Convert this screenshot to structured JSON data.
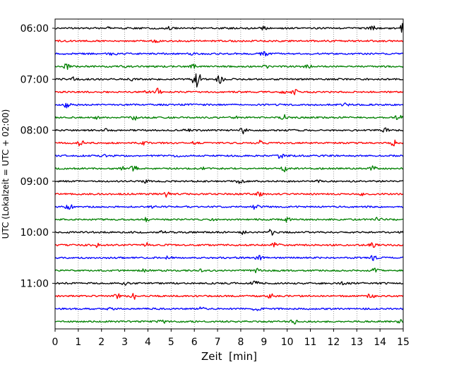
{
  "chart_data": {
    "type": "line",
    "title": "",
    "xlabel": "Zeit  [min]",
    "ylabel": "UTC (Lokalzeit = UTC + 02:00)",
    "xlim": [
      0,
      15
    ],
    "x_ticks": [
      0,
      1,
      2,
      3,
      4,
      5,
      6,
      7,
      8,
      9,
      10,
      11,
      12,
      13,
      14,
      15
    ],
    "x_tick_labels": [
      "0",
      "1",
      "2",
      "3",
      "4",
      "5",
      "6",
      "7",
      "8",
      "9",
      "10",
      "11",
      "12",
      "13",
      "14",
      "15"
    ],
    "y_tick_labels": [
      "06:00",
      "07:00",
      "08:00",
      "09:00",
      "10:00",
      "11:00"
    ],
    "grid": "vertical dotted",
    "trace_interval_min": 15,
    "color_cycle": [
      "#000000",
      "#ff0000",
      "#0000ff",
      "#008000"
    ],
    "series": [
      {
        "start": "06:00",
        "color": "#000000",
        "events": [
          [
            15.0,
            1.0
          ],
          [
            13.7,
            0.35
          ],
          [
            9.0,
            0.25
          ],
          [
            4.9,
            0.2
          ],
          [
            2.3,
            0.2
          ]
        ]
      },
      {
        "start": "06:15",
        "color": "#ff0000",
        "events": [
          [
            4.3,
            0.25
          ]
        ]
      },
      {
        "start": "06:30",
        "color": "#0000ff",
        "events": [
          [
            9.0,
            0.45
          ],
          [
            5.9,
            0.2
          ],
          [
            2.5,
            0.2
          ]
        ]
      },
      {
        "start": "06:45",
        "color": "#008000",
        "events": [
          [
            0.5,
            0.5
          ],
          [
            5.9,
            0.5
          ],
          [
            10.9,
            0.4
          ],
          [
            9.1,
            0.2
          ],
          [
            3.0,
            0.25
          ]
        ]
      },
      {
        "start": "07:00",
        "color": "#000000",
        "events": [
          [
            6.1,
            2.2
          ],
          [
            7.1,
            0.8
          ],
          [
            0.8,
            0.3
          ],
          [
            3.3,
            0.2
          ]
        ]
      },
      {
        "start": "07:15",
        "color": "#ff0000",
        "events": [
          [
            4.4,
            0.6
          ],
          [
            10.3,
            0.5
          ],
          [
            3.9,
            0.3
          ],
          [
            9.8,
            0.2
          ]
        ]
      },
      {
        "start": "07:30",
        "color": "#0000ff",
        "events": [
          [
            0.5,
            0.5
          ],
          [
            5.8,
            0.2
          ],
          [
            12.5,
            0.2
          ]
        ]
      },
      {
        "start": "07:45",
        "color": "#008000",
        "events": [
          [
            3.4,
            0.45
          ],
          [
            9.9,
            0.45
          ],
          [
            14.8,
            0.4
          ],
          [
            1.8,
            0.2
          ],
          [
            7.8,
            0.2
          ]
        ]
      },
      {
        "start": "08:00",
        "color": "#000000",
        "events": [
          [
            8.1,
            0.65
          ],
          [
            14.2,
            0.35
          ],
          [
            5.7,
            0.2
          ],
          [
            2.2,
            0.2
          ]
        ]
      },
      {
        "start": "08:15",
        "color": "#ff0000",
        "events": [
          [
            1.1,
            0.5
          ],
          [
            14.6,
            0.55
          ],
          [
            8.8,
            0.4
          ],
          [
            3.8,
            0.3
          ],
          [
            6.0,
            0.2
          ]
        ]
      },
      {
        "start": "08:30",
        "color": "#0000ff",
        "events": [
          [
            9.7,
            0.5
          ],
          [
            5.3,
            0.3
          ],
          [
            2.1,
            0.2
          ]
        ]
      },
      {
        "start": "08:45",
        "color": "#008000",
        "events": [
          [
            3.4,
            0.5
          ],
          [
            9.9,
            0.45
          ],
          [
            13.7,
            0.4
          ],
          [
            2.9,
            0.3
          ],
          [
            6.4,
            0.2
          ]
        ]
      },
      {
        "start": "09:00",
        "color": "#000000",
        "events": [
          [
            8.0,
            0.6
          ],
          [
            3.9,
            0.2
          ],
          [
            11.4,
            0.2
          ]
        ]
      },
      {
        "start": "09:15",
        "color": "#ff0000",
        "events": [
          [
            4.8,
            0.45
          ],
          [
            8.8,
            0.4
          ],
          [
            13.2,
            0.2
          ]
        ]
      },
      {
        "start": "09:30",
        "color": "#0000ff",
        "events": [
          [
            0.6,
            0.5
          ],
          [
            8.6,
            0.45
          ],
          [
            4.1,
            0.2
          ]
        ]
      },
      {
        "start": "09:45",
        "color": "#008000",
        "events": [
          [
            4.0,
            0.45
          ],
          [
            10.0,
            0.4
          ],
          [
            13.9,
            0.45
          ],
          [
            6.8,
            0.2
          ]
        ]
      },
      {
        "start": "10:00",
        "color": "#000000",
        "events": [
          [
            9.3,
            0.5
          ],
          [
            8.1,
            0.3
          ],
          [
            4.6,
            0.2
          ]
        ]
      },
      {
        "start": "10:15",
        "color": "#ff0000",
        "events": [
          [
            3.9,
            0.6
          ],
          [
            9.5,
            0.5
          ],
          [
            13.7,
            0.5
          ],
          [
            1.8,
            0.3
          ]
        ]
      },
      {
        "start": "10:30",
        "color": "#0000ff",
        "events": [
          [
            8.8,
            0.4
          ],
          [
            13.7,
            0.5
          ],
          [
            4.9,
            0.3
          ]
        ]
      },
      {
        "start": "10:45",
        "color": "#008000",
        "events": [
          [
            3.9,
            0.4
          ],
          [
            8.7,
            0.35
          ],
          [
            13.8,
            0.4
          ],
          [
            6.2,
            0.2
          ]
        ]
      },
      {
        "start": "11:00",
        "color": "#000000",
        "events": [
          [
            8.6,
            0.5
          ],
          [
            3.0,
            0.3
          ],
          [
            12.4,
            0.2
          ]
        ]
      },
      {
        "start": "11:15",
        "color": "#ff0000",
        "events": [
          [
            2.7,
            0.5
          ],
          [
            3.4,
            0.5
          ],
          [
            9.3,
            0.4
          ],
          [
            13.6,
            0.4
          ]
        ]
      },
      {
        "start": "11:30",
        "color": "#0000ff",
        "events": [
          [
            8.7,
            0.5
          ],
          [
            6.3,
            0.3
          ],
          [
            2.4,
            0.2
          ]
        ]
      },
      {
        "start": "11:45",
        "color": "#008000",
        "events": [
          [
            4.6,
            0.35
          ],
          [
            10.3,
            0.35
          ],
          [
            14.8,
            0.5
          ]
        ]
      }
    ]
  }
}
